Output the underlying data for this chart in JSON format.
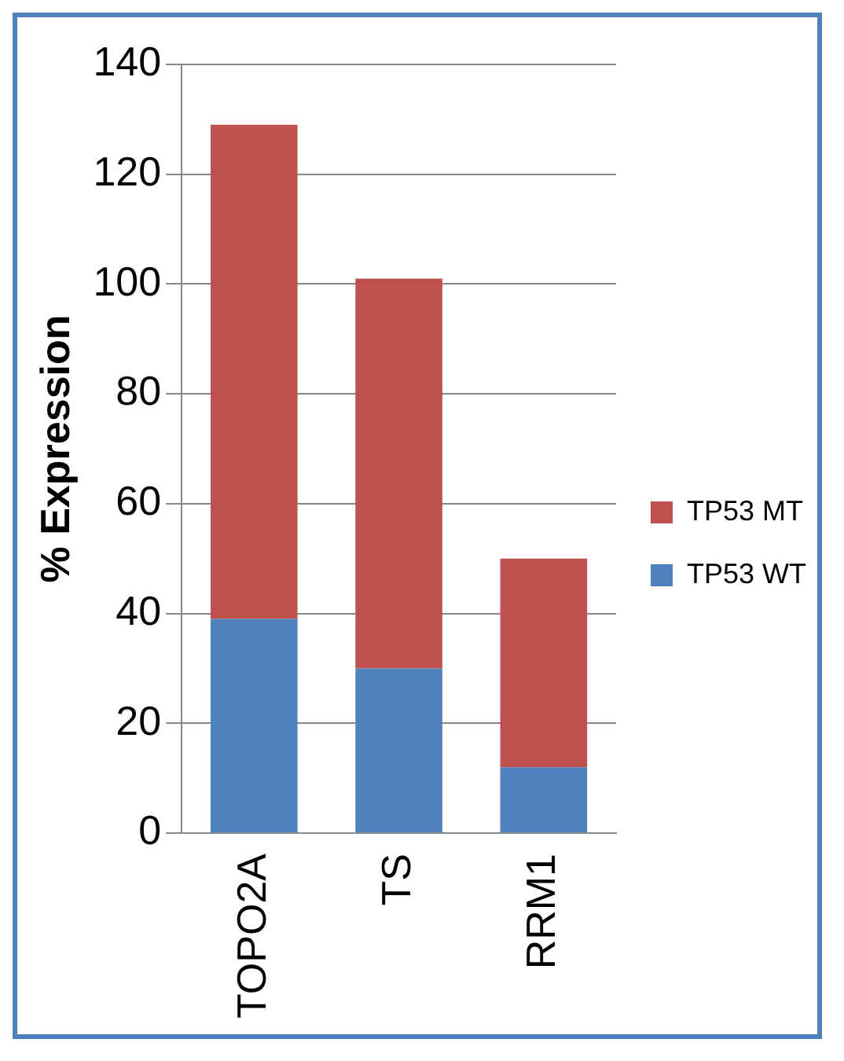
{
  "chart_data": {
    "type": "bar",
    "ylabel": "% Expression",
    "categories": [
      "TOPO2A",
      "TS",
      "RRM1"
    ],
    "stacked": true,
    "series": [
      {
        "name": "TP53 WT",
        "color": "#4f81bd",
        "values": [
          39,
          30,
          12
        ]
      },
      {
        "name": "TP53 MT",
        "color": "#c0504d",
        "values": [
          90,
          71,
          38
        ]
      }
    ],
    "ylim": [
      0,
      140
    ],
    "yticks": [
      0,
      20,
      40,
      60,
      80,
      100,
      120,
      140
    ],
    "grid": "y",
    "legend": "right"
  }
}
